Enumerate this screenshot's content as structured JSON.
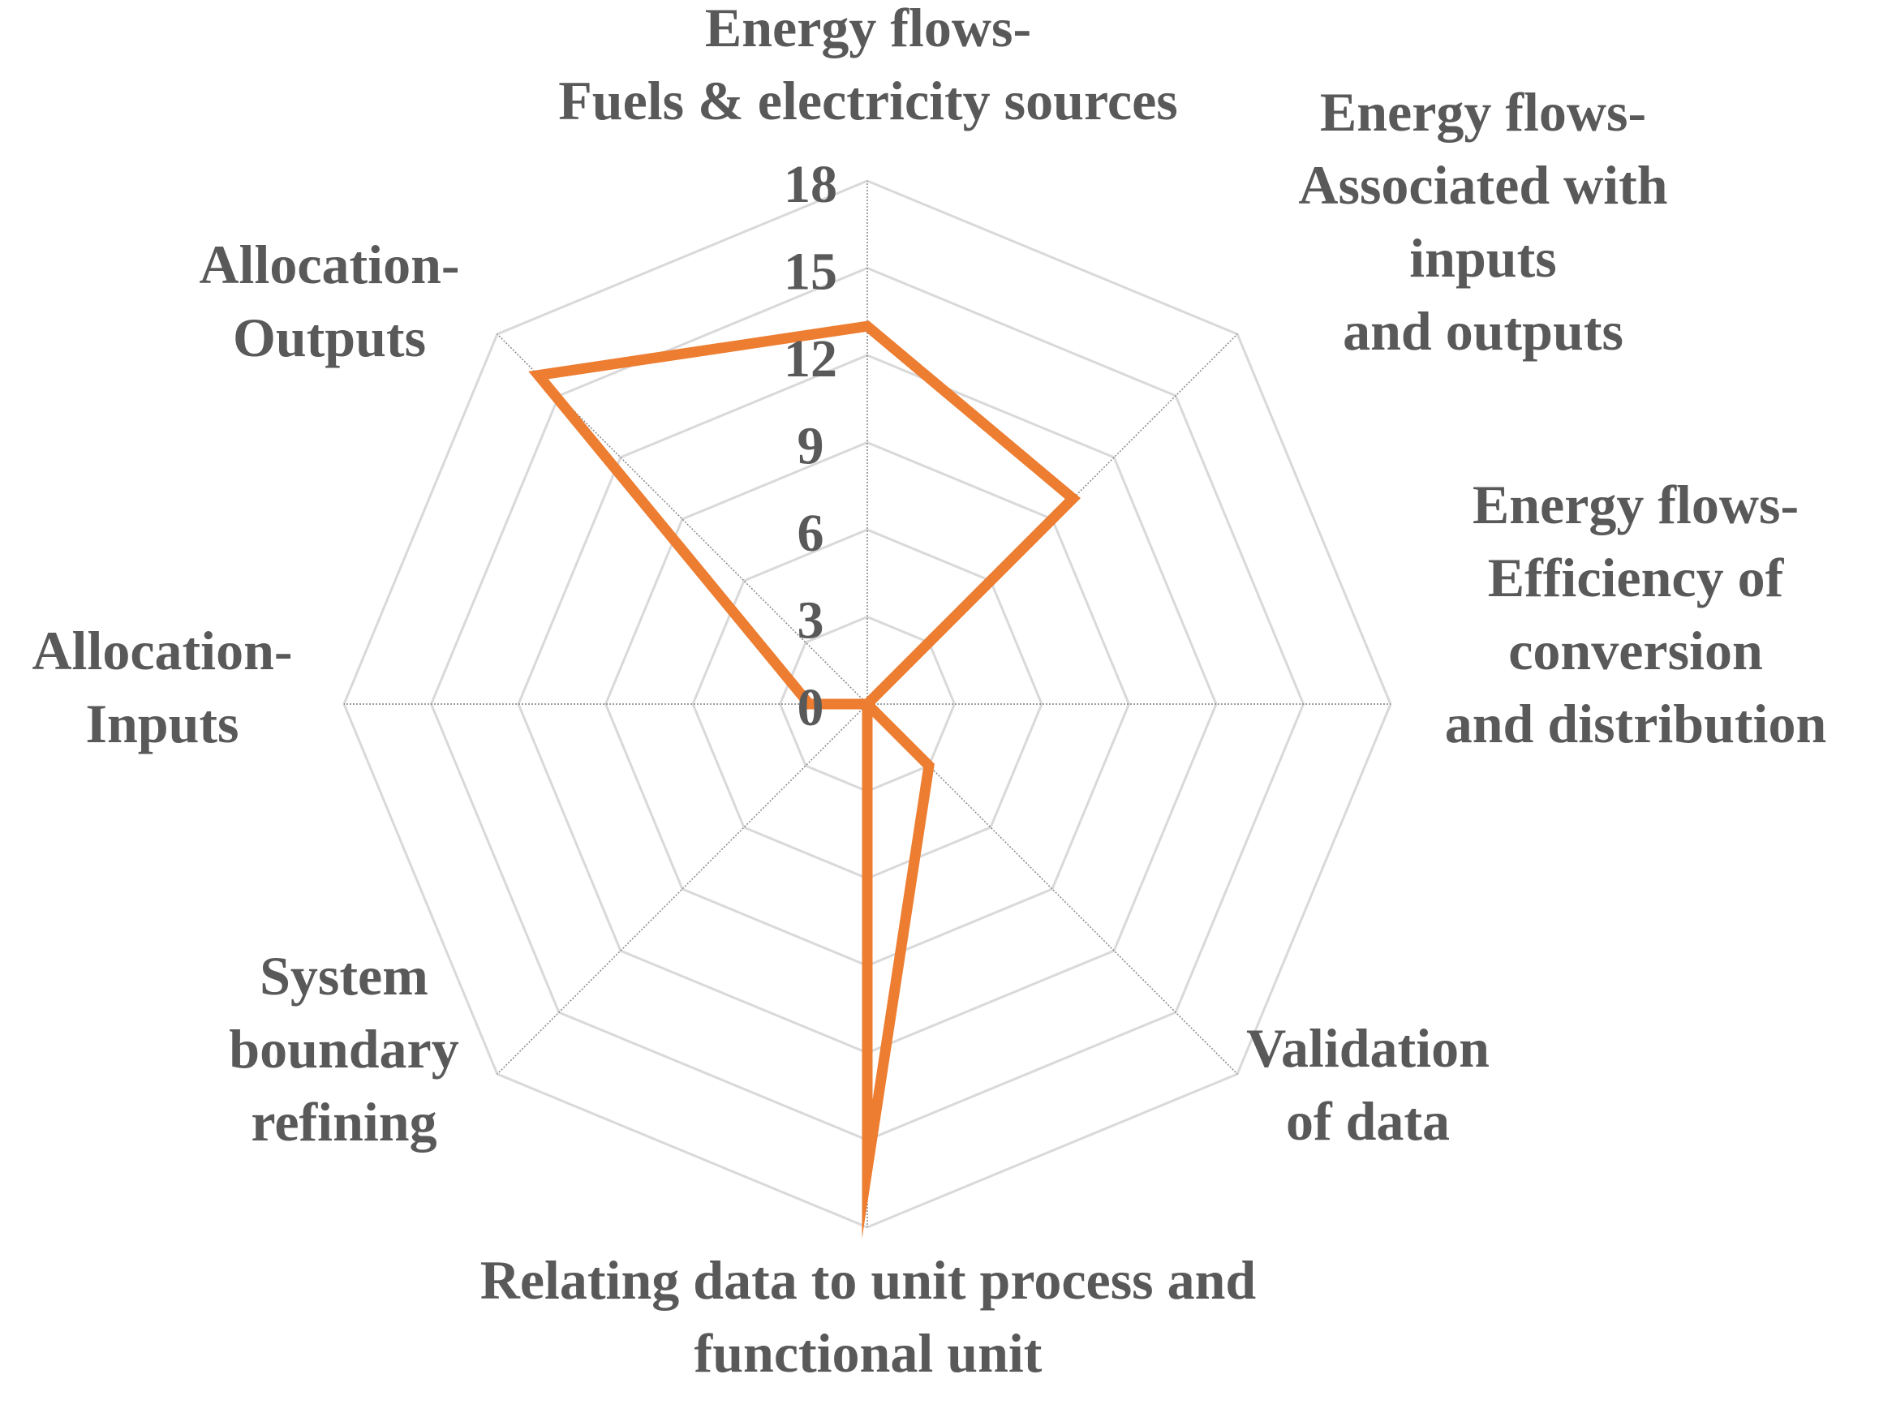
{
  "chart_data": {
    "type": "radar",
    "categories": [
      [
        "Energy flows-",
        "Fuels & electricity sources"
      ],
      [
        "Energy flows-",
        "Associated with",
        "inputs",
        "and outputs"
      ],
      [
        "Energy flows-",
        "Efficiency of",
        "conversion",
        "and distribution"
      ],
      [
        "Validation",
        "of data"
      ],
      [
        "Relating data to unit process and",
        "functional unit"
      ],
      [
        "System",
        "boundary",
        "refining"
      ],
      [
        "Allocation-",
        "Inputs"
      ],
      [
        "Allocation-",
        "Outputs"
      ]
    ],
    "series": [
      {
        "values": [
          13,
          10,
          0,
          3,
          16,
          0,
          2,
          16
        ]
      }
    ],
    "ticks": [
      "0",
      "3",
      "6",
      "9",
      "12",
      "15",
      "18"
    ],
    "rlim": [
      0,
      18
    ],
    "grid": true,
    "legend": "none",
    "colors": {
      "series": "#ED7D31",
      "grid": "#D9D9D9",
      "spoke": "#7F7F7F",
      "text": "#595959"
    }
  }
}
